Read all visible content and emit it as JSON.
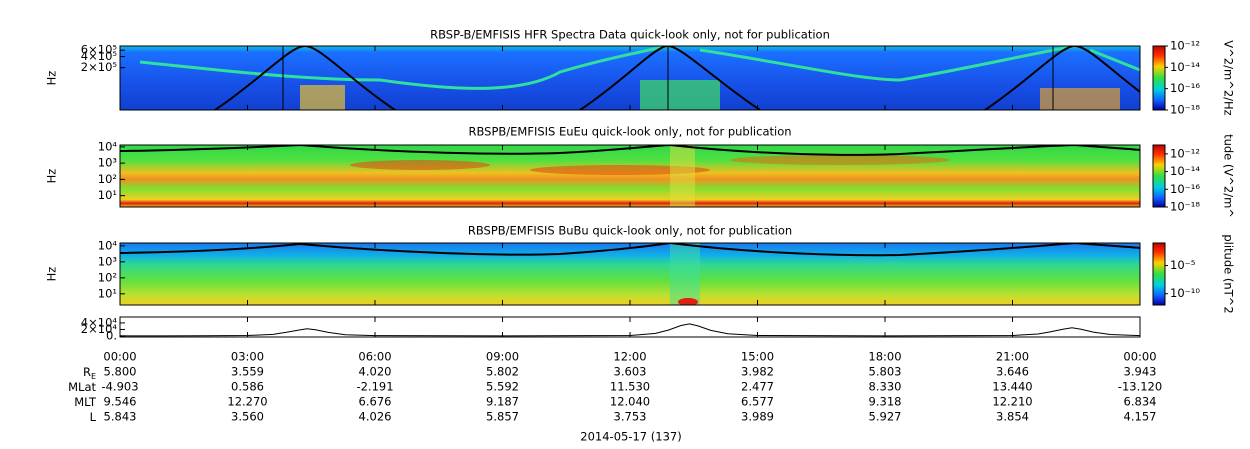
{
  "chart_data": [
    {
      "type": "spectrogram",
      "title": "RBSP-B/EMFISIS  HFR Spectra Data quick-look only, not for publication",
      "ylabel": "Hz",
      "yscale": "log",
      "ylim": [
        14000,
        780000
      ],
      "yticks": [
        {
          "value": 200000,
          "label": "2×10⁵"
        },
        {
          "value": 400000,
          "label": "4×10⁵"
        },
        {
          "value": 600000,
          "label": "6×10⁵"
        }
      ],
      "colorbar_label": "V^2/m^2/Hz",
      "clim": [
        1e-18,
        1e-12
      ],
      "colorbar_ticks": [
        {
          "value": 1e-12,
          "label": "10⁻¹²"
        },
        {
          "value": 1e-14,
          "label": "10⁻¹⁴"
        },
        {
          "value": 1e-16,
          "label": "10⁻¹⁶"
        },
        {
          "value": 1e-18,
          "label": "10⁻¹⁸"
        }
      ]
    },
    {
      "type": "spectrogram",
      "title": "RBSPB/EMFISIS  EuEu quick-look only, not for publication",
      "ylabel": "Hz",
      "yscale": "log",
      "ylim": [
        2,
        13000
      ],
      "yticks": [
        {
          "value": 10,
          "label": "10¹"
        },
        {
          "value": 100,
          "label": "10²"
        },
        {
          "value": 1000,
          "label": "10³"
        },
        {
          "value": 10000,
          "label": "10⁴"
        }
      ],
      "colorbar_label": "tude (V^2/m^",
      "clim": [
        1e-18,
        1e-11
      ],
      "colorbar_ticks": [
        {
          "value": 1e-12,
          "label": "10⁻¹²"
        },
        {
          "value": 1e-14,
          "label": "10⁻¹⁴"
        },
        {
          "value": 1e-16,
          "label": "10⁻¹⁶"
        },
        {
          "value": 1e-18,
          "label": "10⁻¹⁸"
        }
      ]
    },
    {
      "type": "spectrogram",
      "title": "RBSPB/EMFISIS  BuBu quick-look only, not for publication",
      "ylabel": "Hz",
      "yscale": "log",
      "ylim": [
        2,
        15000
      ],
      "yticks": [
        {
          "value": 10,
          "label": "10¹"
        },
        {
          "value": 100,
          "label": "10²"
        },
        {
          "value": 1000,
          "label": "10³"
        },
        {
          "value": 10000,
          "label": "10⁴"
        }
      ],
      "colorbar_label": "plitude (nT^2",
      "clim": [
        1e-12,
        0.1
      ],
      "colorbar_ticks": [
        {
          "value": 1e-05,
          "label": "10⁻⁵"
        },
        {
          "value": 1e-10,
          "label": "10⁻¹⁰"
        }
      ]
    },
    {
      "type": "line",
      "ylim": [
        -3000,
        58000
      ],
      "color": "#000000",
      "yticks": [
        {
          "value": 0,
          "label": "0."
        },
        {
          "value": 20000,
          "label": "2×10⁴"
        },
        {
          "value": 40000,
          "label": "4×10⁴"
        }
      ],
      "x": [
        0,
        1,
        2,
        3,
        3.6,
        3.9,
        4.2,
        4.4,
        4.6,
        4.9,
        5.3,
        6,
        9,
        12,
        12.6,
        12.9,
        13.2,
        13.4,
        13.6,
        13.9,
        14.3,
        15,
        18,
        21,
        21.6,
        21.9,
        22.2,
        22.4,
        22.6,
        22.9,
        23.3,
        24
      ],
      "values": [
        800,
        500,
        900,
        1500,
        5000,
        11000,
        18000,
        22000,
        19000,
        11000,
        4000,
        1200,
        500,
        1500,
        8000,
        18000,
        32000,
        37000,
        31000,
        17000,
        7000,
        1500,
        500,
        1500,
        6000,
        13000,
        21000,
        25000,
        21000,
        12000,
        4500,
        1200
      ]
    }
  ],
  "x_axis": {
    "xlim": [
      0,
      24
    ],
    "xticks": [
      {
        "value": 0,
        "label": "00:00"
      },
      {
        "value": 3,
        "label": "03:00"
      },
      {
        "value": 6,
        "label": "06:00"
      },
      {
        "value": 9,
        "label": "09:00"
      },
      {
        "value": 12,
        "label": "12:00"
      },
      {
        "value": 15,
        "label": "15:00"
      },
      {
        "value": 18,
        "label": "18:00"
      },
      {
        "value": 21,
        "label": "21:00"
      },
      {
        "value": 24,
        "label": "00:00"
      }
    ],
    "date": "2014-05-17 (137)"
  },
  "ephemeris": [
    {
      "label": "R",
      "subscript": "E",
      "values": [
        "5.800",
        "3.559",
        "4.020",
        "5.802",
        "3.603",
        "3.982",
        "5.803",
        "3.646",
        "3.943"
      ]
    },
    {
      "label": "MLat",
      "values": [
        "-4.903",
        "0.586",
        "-2.191",
        "5.592",
        "11.530",
        "2.477",
        "8.330",
        "13.440",
        "-13.120"
      ]
    },
    {
      "label": "MLT",
      "values": [
        "9.546",
        "12.270",
        "6.676",
        "9.187",
        "12.040",
        "6.577",
        "9.318",
        "12.210",
        "6.834"
      ]
    },
    {
      "label": "L",
      "values": [
        "5.843",
        "3.560",
        "4.026",
        "5.857",
        "3.753",
        "3.989",
        "5.927",
        "3.854",
        "4.157"
      ]
    }
  ]
}
